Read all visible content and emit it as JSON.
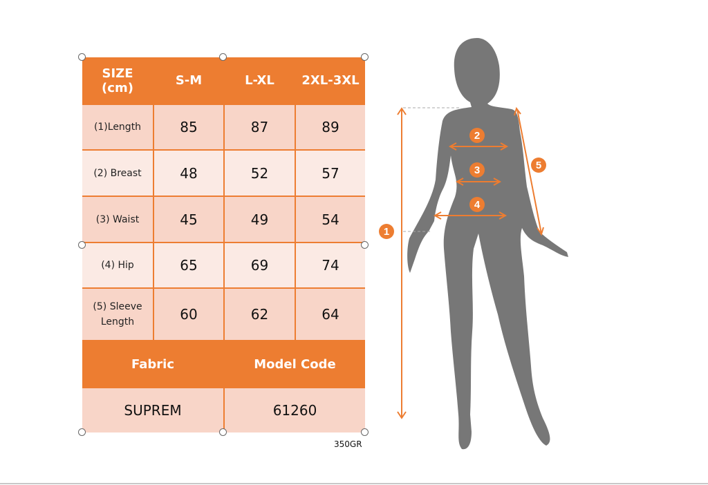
{
  "table": {
    "header": [
      "SIZE\n(cm)",
      "S-M",
      "L-XL",
      "2XL-3XL"
    ],
    "rows": [
      {
        "label": "(1)Length",
        "values": [
          "85",
          "87",
          "89"
        ]
      },
      {
        "label": "(2) Breast",
        "values": [
          "48",
          "52",
          "57"
        ]
      },
      {
        "label": "(3) Waist",
        "values": [
          "45",
          "49",
          "54"
        ]
      },
      {
        "label": "(4) Hip",
        "values": [
          "65",
          "69",
          "74"
        ]
      },
      {
        "label": "(5) Sleeve\nLength",
        "values": [
          "60",
          "62",
          "64"
        ]
      }
    ],
    "fabric_label": "Fabric",
    "model_code_label": "Model Code",
    "fabric_value": "SUPREM",
    "model_code_value": "61260"
  },
  "note": "350GR",
  "figure": {
    "markers": [
      "1",
      "2",
      "3",
      "4",
      "5"
    ]
  },
  "colors": {
    "accent": "#ED7D31",
    "cell_dark": "#F8D5C8",
    "cell_light": "#FBEAE4",
    "silhouette": "#777777"
  }
}
